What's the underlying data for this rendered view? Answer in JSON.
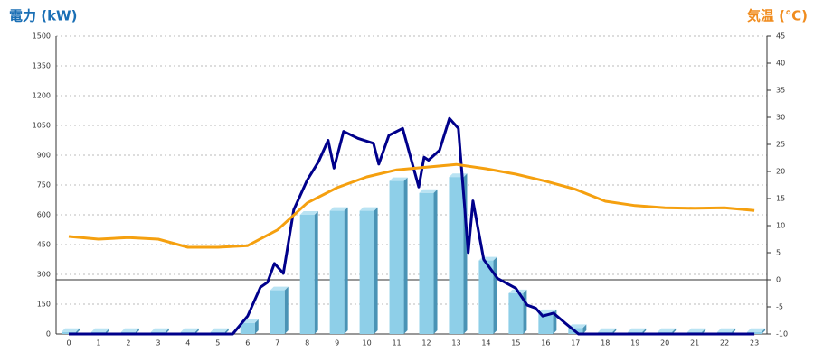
{
  "chart_data": {
    "type": "bar",
    "y_label": "電力 (kW)",
    "y2_label": "気温 (℃)",
    "categories": [
      "0",
      "1",
      "2",
      "3",
      "4",
      "5",
      "6",
      "7",
      "8",
      "9",
      "10",
      "11",
      "12",
      "13",
      "14",
      "15",
      "16",
      "17",
      "18",
      "19",
      "20",
      "21",
      "22",
      "23"
    ],
    "ylim": [
      0,
      1500
    ],
    "yticks": [
      0,
      150,
      300,
      450,
      600,
      750,
      900,
      1050,
      1200,
      1350,
      1500
    ],
    "y2lim": [
      -10,
      45
    ],
    "y2ticks": [
      -10,
      -5,
      0,
      5,
      10,
      15,
      20,
      25,
      30,
      35,
      40,
      45
    ],
    "grid": true,
    "series": [
      {
        "type": "bar",
        "color": "#8ecfe8",
        "values": [
          10,
          10,
          10,
          10,
          10,
          10,
          55,
          220,
          600,
          620,
          620,
          770,
          710,
          790,
          370,
          205,
          105,
          30,
          10,
          10,
          10,
          10,
          10,
          10
        ]
      },
      {
        "type": "line",
        "color": "#00008b",
        "x": [
          0,
          5.5,
          6,
          6.43,
          6.67,
          6.9,
          7.2,
          7.55,
          8,
          8.37,
          8.7,
          8.9,
          9.22,
          9.7,
          10.22,
          10.4,
          10.74,
          11.2,
          11.74,
          11.92,
          12.07,
          12.44,
          12.77,
          13.07,
          13.4,
          13.56,
          13.92,
          14.38,
          15,
          15.38,
          15.66,
          15.9,
          16.26,
          16.65,
          17.1,
          23
        ],
        "values": [
          0,
          0,
          90,
          235,
          260,
          355,
          305,
          625,
          775,
          865,
          975,
          835,
          1020,
          985,
          960,
          855,
          1000,
          1035,
          740,
          890,
          875,
          925,
          1085,
          1035,
          410,
          670,
          375,
          280,
          230,
          145,
          130,
          90,
          105,
          55,
          0,
          0
        ]
      },
      {
        "type": "line",
        "color": "#f5a00f",
        "axis": "y2",
        "values": [
          8,
          7.5,
          7.8,
          7.5,
          6,
          6,
          6.3,
          9.2,
          14.2,
          17,
          19,
          20.3,
          20.8,
          21.3,
          20.5,
          19.5,
          18.2,
          16.7,
          14.5,
          13.7,
          13.3,
          13.2,
          13.3,
          12.8
        ]
      }
    ]
  }
}
